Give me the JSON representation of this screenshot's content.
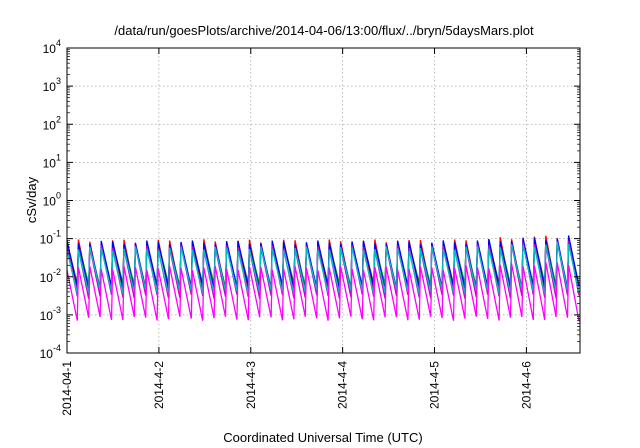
{
  "chart_data": {
    "type": "line",
    "title": "/data/run/goesPlots/archive/2014-04-06/13:00/flux/../bryn/5daysMars.plot",
    "xlabel": "Coordinated Universal Time (UTC)",
    "ylabel": "cSv/day",
    "y_scale": "log",
    "ylim": [
      0.0001,
      10000
    ],
    "y_ticks": [
      {
        "base": "10",
        "exp": "-4"
      },
      {
        "base": "10",
        "exp": "-3"
      },
      {
        "base": "10",
        "exp": "-2"
      },
      {
        "base": "10",
        "exp": "-1"
      },
      {
        "base": "10",
        "exp": "0"
      },
      {
        "base": "10",
        "exp": "1"
      },
      {
        "base": "10",
        "exp": "2"
      },
      {
        "base": "10",
        "exp": "3"
      },
      {
        "base": "10",
        "exp": "4"
      }
    ],
    "xlim": [
      "2014-04-01",
      "2014-04-06 14:00"
    ],
    "x_tick_labels": [
      "2014-04-1",
      "2014-4-2",
      "2014-4-3",
      "2014-4-4",
      "2014-4-5",
      "2014-4-6"
    ],
    "grid": true,
    "legend": "none",
    "pattern": {
      "description": "sawtooth oscillation, period about 3 hours",
      "cycles": 45,
      "cycle_hours": 3
    },
    "series": [
      {
        "color": "#ff0000",
        "peak": 0.085,
        "trough": 0.0042
      },
      {
        "color": "#00a000",
        "peak": 0.07,
        "trough": 0.006
      },
      {
        "color": "#0000ff",
        "peak": 0.08,
        "trough": 0.005
      },
      {
        "color": "#cc00cc",
        "peak": 0.06,
        "trough": 0.003
      },
      {
        "color": "#00bfbf",
        "peak": 0.055,
        "trough": 0.004
      },
      {
        "color": "#ff00ff",
        "peak": 0.017,
        "trough": 0.0008
      }
    ]
  }
}
